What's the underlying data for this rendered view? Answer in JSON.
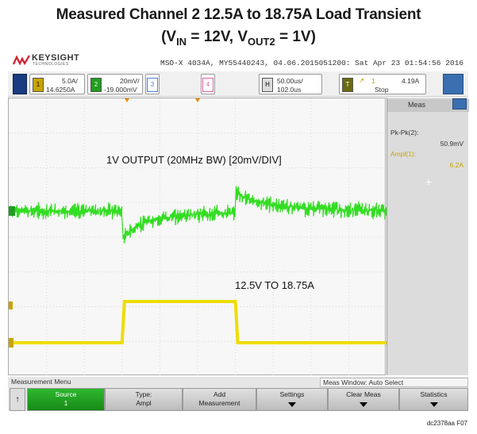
{
  "figure": {
    "title": "Measured Channel 2 12.5A to 18.75A Load Transient",
    "subtitle_prefix": "(V",
    "subtitle_in_sub": "IN",
    "subtitle_mid": " = 12V, V",
    "subtitle_out_sub": "OUT2",
    "subtitle_suffix": " = 1V)",
    "code": "dc2378aa F07"
  },
  "scope": {
    "brand": "KEYSIGHT",
    "brand_sub": "TECHNOLOGIES",
    "model_line": "MSO-X 4034A, MY55440243, 04.06.2015051200: Sat Apr 23 01:54:56 2016",
    "channels": [
      {
        "num": "1",
        "scale": "5.0A/",
        "offset": "14.6250A",
        "color": "#c8a400"
      },
      {
        "num": "2",
        "scale": "20mV/",
        "offset": "-19.000mV",
        "color": "#1f9e1f"
      },
      {
        "num": "3",
        "scale": "",
        "offset": "",
        "color": "#4a7fd0"
      },
      {
        "num": "4",
        "scale": "",
        "offset": "",
        "color": "#e060a0"
      }
    ],
    "horizontal": {
      "key": "H",
      "scale": "50.00us/",
      "delay": "102.0us"
    },
    "trigger": {
      "key": "T",
      "level": "4.19A",
      "mode": "Stop",
      "source": "1"
    },
    "trace_labels": {
      "output": "1V OUTPUT (20MHz BW) [20mV/DIV]",
      "load": "12.5V TO 18.75A"
    },
    "measurements": {
      "title": "Meas",
      "items": [
        {
          "name": "Pk-Pk(2):",
          "value": "50.9mV",
          "color": "#333333"
        },
        {
          "name": "Ampl(1):",
          "value": "6.2A",
          "color": "#c8a400"
        }
      ]
    },
    "softkeys": {
      "menu_title": "Measurement Menu",
      "window": "Meas Window: Auto Select",
      "keys": [
        {
          "l1": "Source",
          "l2": "1"
        },
        {
          "l1": "Type:",
          "l2": "Ampl"
        },
        {
          "l1": "Add",
          "l2": "Measurement"
        },
        {
          "l1": "Settings",
          "l2": ""
        },
        {
          "l1": "Clear Meas",
          "l2": ""
        },
        {
          "l1": "Statistics",
          "l2": ""
        }
      ]
    }
  },
  "waveforms": {
    "ch2_color": "#33dd22",
    "ch1_color": "#eedd00",
    "ch1_low_A": 12.5,
    "ch1_high_A": 18.75,
    "step_up_div": 3.0,
    "step_down_div": 6.0,
    "divisions_x": 10,
    "divisions_y": 8
  }
}
